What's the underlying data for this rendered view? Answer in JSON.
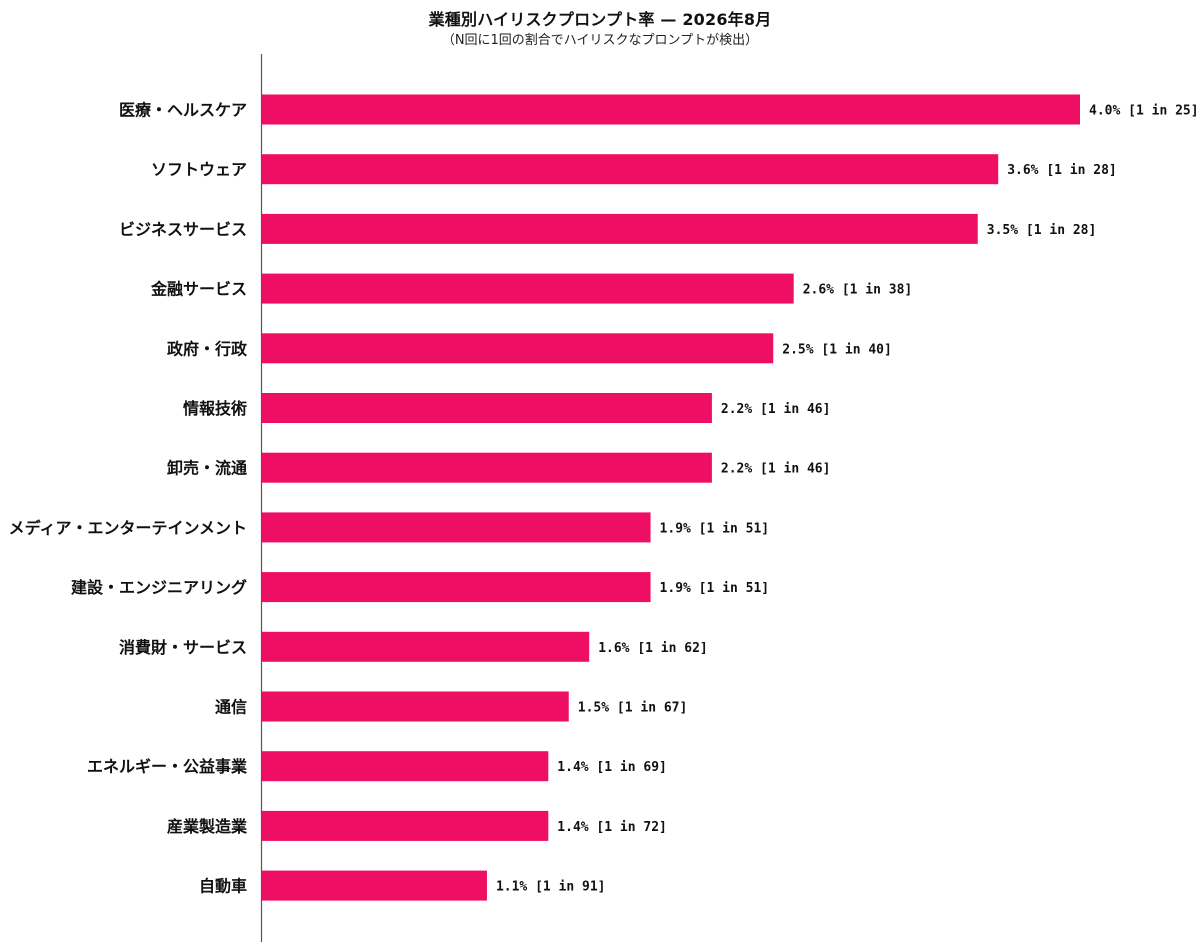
{
  "chart_data": {
    "type": "bar",
    "orientation": "horizontal",
    "title": "業種別ハイリスクプロンプト率 — 2026年8月",
    "subtitle": "（N回に1回の割合でハイリスクなプロンプトが検出）",
    "xlabel": "",
    "ylabel": "",
    "xlim": [
      0,
      4.0
    ],
    "grid": false,
    "legend": "none",
    "bar_color": "#EE0E63",
    "axis_color": "#555555",
    "categories": [
      "医療・ヘルスケア",
      "ソフトウェア",
      "ビジネスサービス",
      "金融サービス",
      "政府・行政",
      "情報技術",
      "卸売・流通",
      "メディア・エンターテインメント",
      "建設・エンジニアリング",
      "消費財・サービス",
      "通信",
      "エネルギー・公益事業",
      "産業製造業",
      "自動車"
    ],
    "values": [
      4.0,
      3.6,
      3.5,
      2.6,
      2.5,
      2.2,
      2.2,
      1.9,
      1.9,
      1.6,
      1.5,
      1.4,
      1.4,
      1.1
    ],
    "data_labels": [
      "4.0% [1 in 25]",
      "3.6% [1 in 28]",
      "3.5% [1 in 28]",
      "2.6% [1 in 38]",
      "2.5% [1 in 40]",
      "2.2% [1 in 46]",
      "2.2% [1 in 46]",
      "1.9% [1 in 51]",
      "1.9% [1 in 51]",
      "1.6% [1 in 62]",
      "1.5% [1 in 67]",
      "1.4% [1 in 69]",
      "1.4% [1 in 72]",
      "1.1% [1 in 91]"
    ]
  }
}
